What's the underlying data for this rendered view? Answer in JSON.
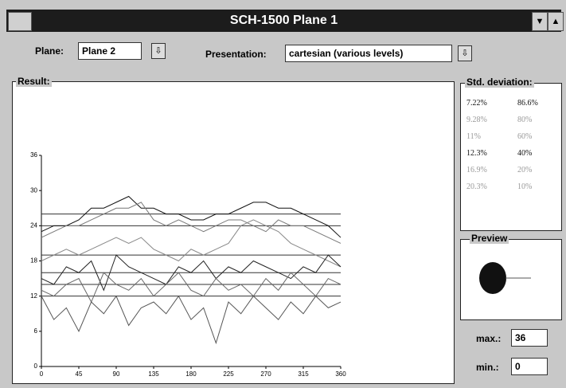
{
  "window": {
    "title": "SCH-1500 Plane 1"
  },
  "toolbar": {
    "plane_label": "Plane:",
    "plane_value": "Plane 2",
    "presentation_label": "Presentation:",
    "presentation_value": "cartesian (various levels)"
  },
  "result": {
    "label": "Result:"
  },
  "std_deviation": {
    "label": "Std. deviation:",
    "rows": [
      [
        "7.22%",
        "86.6%"
      ],
      [
        "9.28%",
        "80%"
      ],
      [
        "11%",
        "60%"
      ],
      [
        "12.3%",
        "40%"
      ],
      [
        "16.9%",
        "20%"
      ],
      [
        "20.3%",
        "10%"
      ]
    ]
  },
  "preview": {
    "label": "Preview"
  },
  "limits": {
    "max_label": "max.:",
    "max_value": "36",
    "min_label": "min.:",
    "min_value": "0"
  },
  "chart_data": {
    "type": "line",
    "x": [
      0,
      15,
      30,
      45,
      60,
      75,
      90,
      105,
      120,
      135,
      150,
      165,
      180,
      195,
      210,
      225,
      240,
      255,
      270,
      285,
      300,
      315,
      330,
      345,
      360
    ],
    "series": [
      {
        "color": "#111111",
        "values": [
          23,
          24,
          24,
          25,
          27,
          27,
          28,
          29,
          27,
          27,
          26,
          26,
          25,
          25,
          26,
          26,
          27,
          28,
          28,
          27,
          27,
          26,
          25,
          24,
          22
        ]
      },
      {
        "color": "#777777",
        "values": [
          22,
          23,
          24,
          24,
          25,
          26,
          27,
          27,
          28,
          25,
          24,
          25,
          24,
          23,
          24,
          25,
          25,
          24,
          23,
          25,
          24,
          24,
          23,
          22,
          21
        ]
      },
      {
        "color": "#888888",
        "values": [
          18,
          19,
          20,
          19,
          20,
          21,
          22,
          21,
          22,
          20,
          19,
          18,
          20,
          19,
          20,
          21,
          24,
          25,
          24,
          23,
          21,
          20,
          19,
          18,
          17
        ]
      },
      {
        "color": "#222222",
        "values": [
          15,
          14,
          17,
          16,
          18,
          13,
          19,
          17,
          16,
          15,
          14,
          17,
          16,
          18,
          15,
          17,
          16,
          18,
          17,
          16,
          15,
          17,
          16,
          19,
          17
        ]
      },
      {
        "color": "#666666",
        "values": [
          13,
          12,
          14,
          15,
          11,
          16,
          14,
          13,
          15,
          12,
          14,
          16,
          13,
          12,
          15,
          13,
          14,
          12,
          15,
          13,
          16,
          14,
          12,
          15,
          14
        ]
      },
      {
        "color": "#555555",
        "values": [
          12,
          8,
          10,
          6,
          11,
          9,
          12,
          7,
          10,
          11,
          9,
          12,
          8,
          10,
          4,
          11,
          9,
          12,
          10,
          8,
          11,
          9,
          12,
          10,
          11
        ]
      }
    ],
    "levels": [
      26,
      24,
      19,
      16,
      14,
      12
    ],
    "xlim": [
      0,
      360
    ],
    "xticks": [
      0,
      45,
      90,
      135,
      180,
      225,
      270,
      315,
      360
    ],
    "ylim": [
      0,
      36
    ],
    "yticks": [
      0,
      6,
      12,
      18,
      24,
      30,
      36
    ]
  }
}
